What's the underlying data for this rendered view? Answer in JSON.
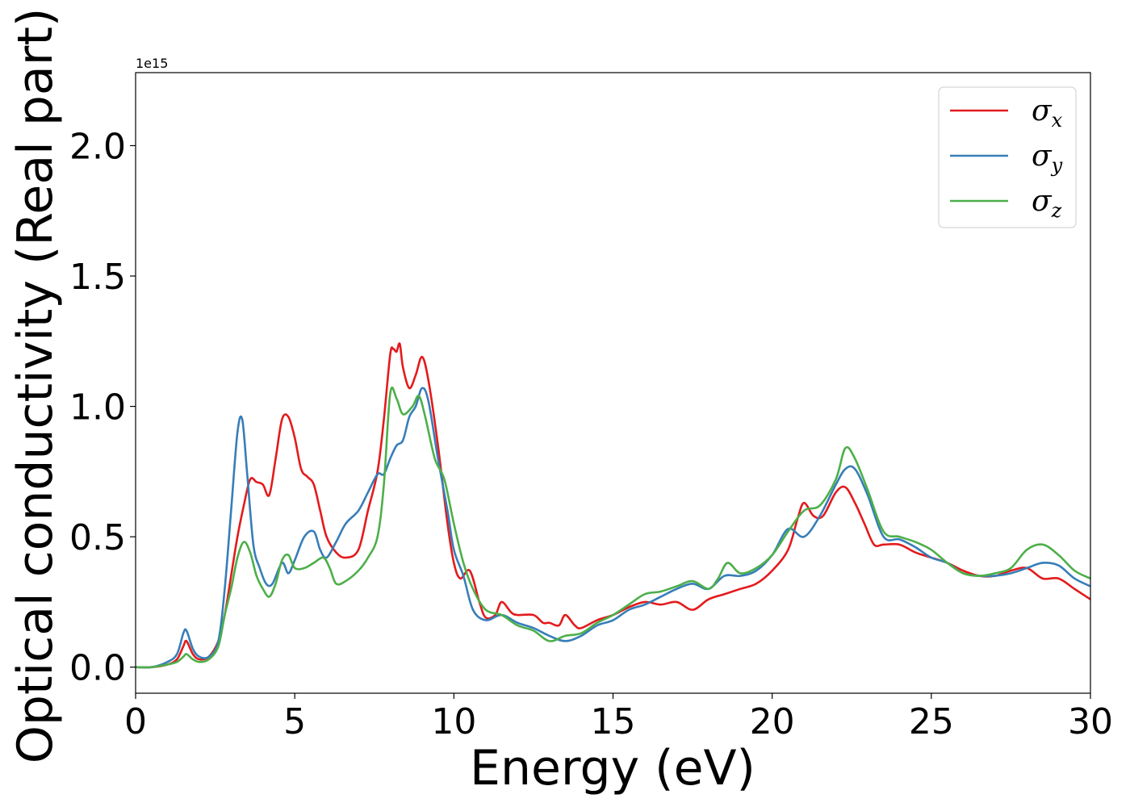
{
  "chart_data": {
    "type": "line",
    "xlabel": "Energy (eV)",
    "ylabel": "Optical conductivity (Real part)",
    "y_offset_label": "1e15",
    "xlim": [
      0,
      30
    ],
    "ylim": [
      -0.1,
      2.28
    ],
    "x_ticks": [
      0,
      5,
      10,
      15,
      20,
      25,
      30
    ],
    "x_tick_labels": [
      "0",
      "5",
      "10",
      "15",
      "20",
      "25",
      "30"
    ],
    "y_ticks": [
      0.0,
      0.5,
      1.0,
      1.5,
      2.0
    ],
    "y_tick_labels": [
      "0.0",
      "0.5",
      "1.0",
      "1.5",
      "2.0"
    ],
    "grid": false,
    "legend_position": "top-right",
    "series": [
      {
        "name": "σx",
        "symbol": "σ",
        "subscript": "x",
        "color": "#e41a1c",
        "x": [
          0,
          0.5,
          1.0,
          1.3,
          1.5,
          1.6,
          1.8,
          2.0,
          2.3,
          2.6,
          2.8,
          3.0,
          3.2,
          3.4,
          3.6,
          3.8,
          4.0,
          4.2,
          4.4,
          4.6,
          4.8,
          5.0,
          5.2,
          5.4,
          5.6,
          5.8,
          6.0,
          6.3,
          6.6,
          7.0,
          7.3,
          7.6,
          7.8,
          8.0,
          8.1,
          8.2,
          8.3,
          8.4,
          8.6,
          8.8,
          9.0,
          9.2,
          9.5,
          9.8,
          10.0,
          10.2,
          10.5,
          10.8,
          11.0,
          11.3,
          11.5,
          11.8,
          12.0,
          12.5,
          12.8,
          13.0,
          13.3,
          13.5,
          13.8,
          14.0,
          14.5,
          15.0,
          15.5,
          16.0,
          16.5,
          17.0,
          17.5,
          18.0,
          18.5,
          19.0,
          19.5,
          20.0,
          20.5,
          20.8,
          21.0,
          21.3,
          21.6,
          22.0,
          22.3,
          22.6,
          22.9,
          23.2,
          23.5,
          24.0,
          24.5,
          25.0,
          25.5,
          26.0,
          26.5,
          27.0,
          27.5,
          28.0,
          28.5,
          29.0,
          29.5,
          30.0
        ],
        "values": [
          0.0,
          0.0,
          0.01,
          0.03,
          0.08,
          0.1,
          0.05,
          0.03,
          0.04,
          0.1,
          0.2,
          0.35,
          0.5,
          0.62,
          0.72,
          0.71,
          0.7,
          0.66,
          0.8,
          0.95,
          0.96,
          0.88,
          0.76,
          0.73,
          0.7,
          0.6,
          0.5,
          0.44,
          0.42,
          0.45,
          0.6,
          0.75,
          0.95,
          1.2,
          1.22,
          1.21,
          1.24,
          1.15,
          1.07,
          1.12,
          1.19,
          1.1,
          0.85,
          0.55,
          0.4,
          0.34,
          0.37,
          0.25,
          0.19,
          0.2,
          0.25,
          0.21,
          0.2,
          0.2,
          0.17,
          0.17,
          0.16,
          0.2,
          0.16,
          0.15,
          0.18,
          0.2,
          0.23,
          0.25,
          0.24,
          0.25,
          0.22,
          0.26,
          0.28,
          0.3,
          0.32,
          0.37,
          0.45,
          0.57,
          0.63,
          0.58,
          0.58,
          0.67,
          0.69,
          0.63,
          0.55,
          0.47,
          0.47,
          0.47,
          0.44,
          0.42,
          0.4,
          0.37,
          0.35,
          0.35,
          0.37,
          0.38,
          0.34,
          0.34,
          0.3,
          0.26
        ]
      },
      {
        "name": "σy",
        "symbol": "σ",
        "subscript": "y",
        "color": "#377eb8",
        "x": [
          0,
          0.5,
          1.0,
          1.3,
          1.5,
          1.6,
          1.8,
          2.0,
          2.3,
          2.6,
          2.8,
          3.0,
          3.2,
          3.35,
          3.5,
          3.7,
          3.9,
          4.1,
          4.3,
          4.6,
          4.8,
          5.0,
          5.3,
          5.6,
          5.8,
          6.0,
          6.3,
          6.6,
          7.0,
          7.3,
          7.6,
          7.8,
          8.0,
          8.2,
          8.4,
          8.6,
          8.8,
          9.0,
          9.2,
          9.5,
          9.8,
          10.0,
          10.3,
          10.6,
          11.0,
          11.5,
          12.0,
          12.5,
          13.0,
          13.5,
          14.0,
          14.5,
          15.0,
          15.5,
          16.0,
          16.5,
          17.0,
          17.5,
          18.0,
          18.5,
          19.0,
          19.5,
          20.0,
          20.5,
          21.0,
          21.5,
          22.0,
          22.3,
          22.6,
          23.0,
          23.5,
          24.0,
          24.5,
          25.0,
          25.5,
          26.0,
          26.5,
          27.0,
          27.5,
          28.0,
          28.5,
          29.0,
          29.5,
          30.0
        ],
        "values": [
          0.0,
          0.0,
          0.02,
          0.05,
          0.13,
          0.14,
          0.07,
          0.04,
          0.04,
          0.1,
          0.3,
          0.6,
          0.9,
          0.95,
          0.75,
          0.47,
          0.38,
          0.32,
          0.32,
          0.4,
          0.36,
          0.41,
          0.5,
          0.52,
          0.45,
          0.42,
          0.48,
          0.55,
          0.6,
          0.67,
          0.74,
          0.74,
          0.8,
          0.85,
          0.87,
          0.96,
          1.0,
          1.07,
          1.02,
          0.8,
          0.6,
          0.45,
          0.35,
          0.22,
          0.18,
          0.2,
          0.17,
          0.15,
          0.12,
          0.1,
          0.12,
          0.16,
          0.18,
          0.22,
          0.24,
          0.27,
          0.3,
          0.32,
          0.3,
          0.35,
          0.35,
          0.37,
          0.43,
          0.53,
          0.5,
          0.58,
          0.7,
          0.76,
          0.76,
          0.66,
          0.5,
          0.49,
          0.46,
          0.42,
          0.4,
          0.36,
          0.35,
          0.35,
          0.36,
          0.38,
          0.4,
          0.39,
          0.34,
          0.31
        ]
      },
      {
        "name": "σz",
        "symbol": "σ",
        "subscript": "z",
        "color": "#4daf4a",
        "x": [
          0,
          0.5,
          1.0,
          1.3,
          1.5,
          1.6,
          1.8,
          2.0,
          2.3,
          2.6,
          2.8,
          3.0,
          3.2,
          3.4,
          3.6,
          3.8,
          4.0,
          4.2,
          4.4,
          4.6,
          4.8,
          5.0,
          5.3,
          5.6,
          5.9,
          6.1,
          6.3,
          6.6,
          7.0,
          7.3,
          7.6,
          7.8,
          8.0,
          8.2,
          8.4,
          8.7,
          8.9,
          9.1,
          9.4,
          9.7,
          10.0,
          10.3,
          10.6,
          11.0,
          11.5,
          12.0,
          12.5,
          13.0,
          13.5,
          14.0,
          14.5,
          15.0,
          15.5,
          16.0,
          16.5,
          17.0,
          17.5,
          18.0,
          18.3,
          18.6,
          19.0,
          19.5,
          20.0,
          20.5,
          21.0,
          21.5,
          22.0,
          22.3,
          22.6,
          23.0,
          23.5,
          24.0,
          24.5,
          25.0,
          25.5,
          26.0,
          26.5,
          27.0,
          27.5,
          28.0,
          28.5,
          29.0,
          29.5,
          30.0
        ],
        "values": [
          0.0,
          0.0,
          0.01,
          0.02,
          0.04,
          0.05,
          0.03,
          0.02,
          0.03,
          0.08,
          0.2,
          0.3,
          0.42,
          0.48,
          0.44,
          0.35,
          0.3,
          0.27,
          0.32,
          0.41,
          0.43,
          0.38,
          0.38,
          0.4,
          0.42,
          0.38,
          0.32,
          0.33,
          0.37,
          0.42,
          0.5,
          0.7,
          1.05,
          1.03,
          0.97,
          1.0,
          1.04,
          0.96,
          0.8,
          0.72,
          0.55,
          0.4,
          0.3,
          0.22,
          0.2,
          0.16,
          0.14,
          0.1,
          0.12,
          0.13,
          0.17,
          0.2,
          0.24,
          0.28,
          0.29,
          0.31,
          0.33,
          0.3,
          0.34,
          0.4,
          0.36,
          0.38,
          0.43,
          0.52,
          0.6,
          0.62,
          0.72,
          0.84,
          0.8,
          0.68,
          0.52,
          0.5,
          0.48,
          0.45,
          0.4,
          0.36,
          0.35,
          0.36,
          0.38,
          0.45,
          0.47,
          0.43,
          0.37,
          0.34
        ]
      }
    ]
  }
}
